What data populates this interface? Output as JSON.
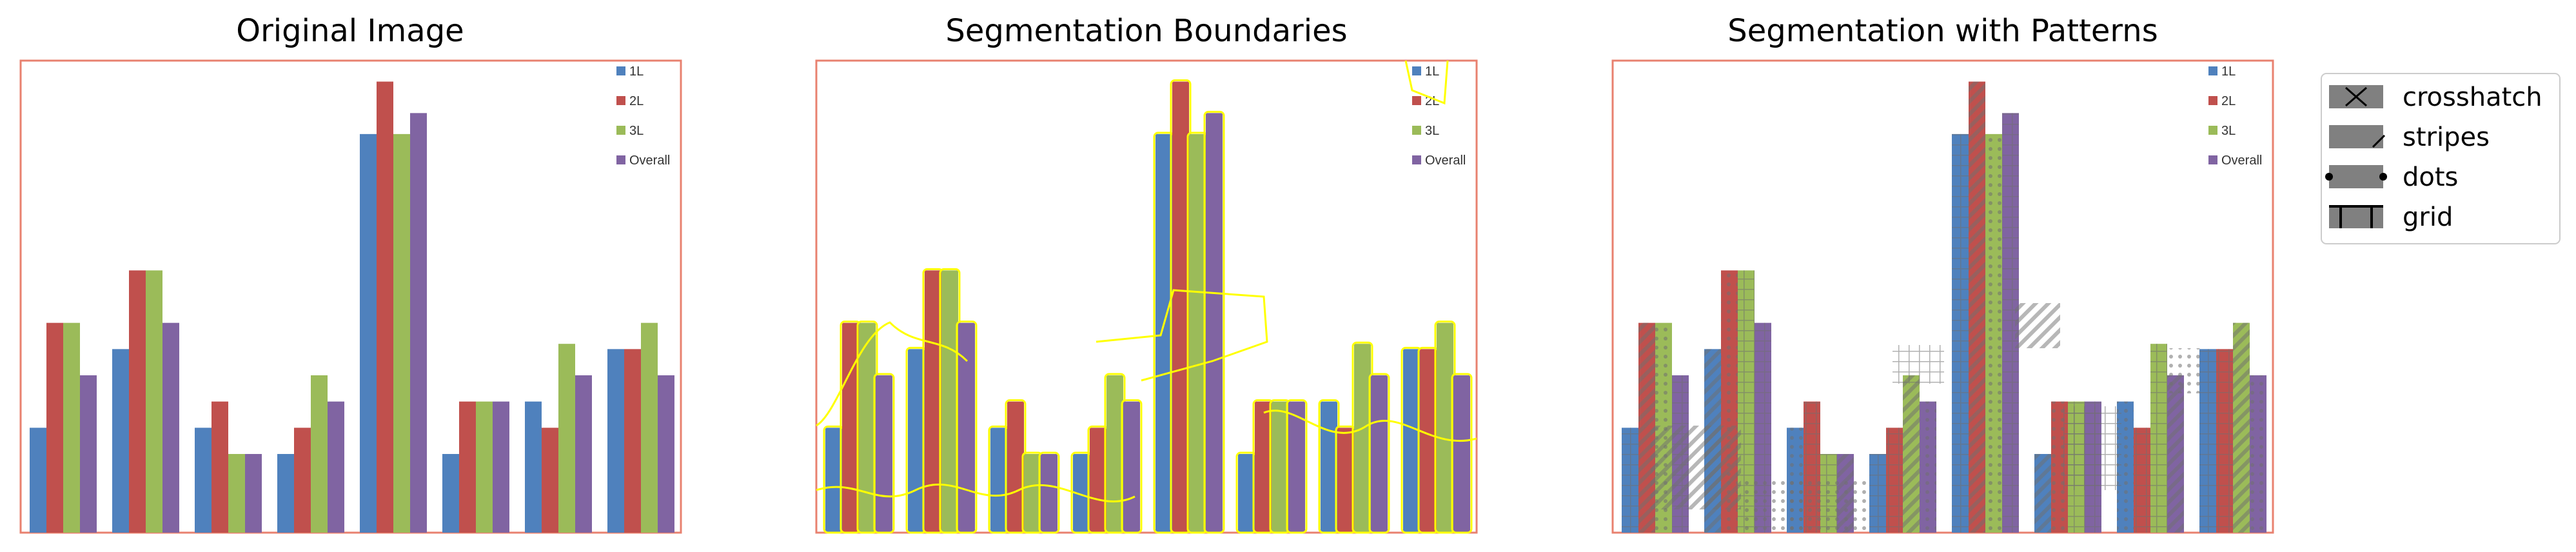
{
  "figure": {
    "panels": [
      {
        "title": "Original Image"
      },
      {
        "title": "Segmentation Boundaries"
      },
      {
        "title": "Segmentation with Patterns"
      }
    ],
    "pattern_legend": [
      {
        "label": "crosshatch",
        "icon": "crosshatch-swatch"
      },
      {
        "label": "stripes",
        "icon": "stripes-swatch"
      },
      {
        "label": "dots",
        "icon": "dots-swatch"
      },
      {
        "label": "grid",
        "icon": "grid-swatch"
      }
    ]
  },
  "chart_data": {
    "type": "bar",
    "categories": [
      "",
      "",
      "",
      "",
      "",
      "",
      "",
      ""
    ],
    "series": [
      {
        "name": "1L",
        "color": "#4f81bd",
        "values": [
          2,
          3.5,
          2,
          1.5,
          7.6,
          1.5,
          2.5,
          3.5
        ]
      },
      {
        "name": "2L",
        "color": "#c0504d",
        "values": [
          4,
          5,
          2.5,
          2,
          8.6,
          2.5,
          2,
          3.5
        ]
      },
      {
        "name": "3L",
        "color": "#9bbb59",
        "values": [
          4,
          5,
          1.5,
          3,
          7.6,
          2.5,
          3.6,
          4
        ]
      },
      {
        "name": "Overall",
        "color": "#8064a2",
        "values": [
          3,
          4,
          1.5,
          2.5,
          8,
          2.5,
          3,
          3
        ]
      }
    ],
    "ylim": [
      0,
      9
    ],
    "grid": false,
    "legend": "top-right",
    "frame_color": "#e8816f",
    "boundary_color": "#ffff00"
  }
}
